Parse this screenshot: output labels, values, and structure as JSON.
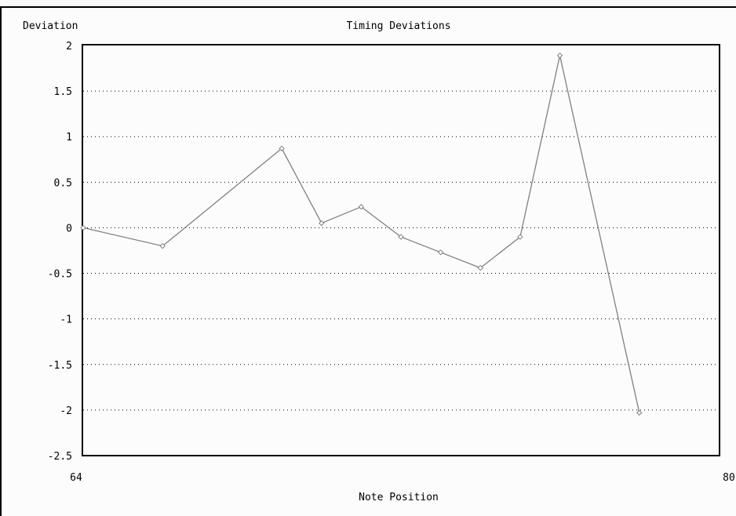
{
  "chart_data": {
    "type": "line",
    "title": "Timing Deviations",
    "xlabel": "Note Position",
    "ylabel": "Deviation",
    "xlim": [
      64,
      80
    ],
    "ylim": [
      -2.5,
      2
    ],
    "x_tick_labels": [
      "64",
      "80"
    ],
    "y_tick_labels": [
      "2",
      "1.5",
      "1",
      "0.5",
      "0",
      "-0.5",
      "-1",
      "-1.5",
      "-2",
      "-2.5"
    ],
    "grid": "dotted horizontal",
    "series": [
      {
        "x": [
          64,
          66,
          69,
          70,
          71,
          72,
          73,
          74,
          75,
          76,
          78
        ],
        "values": [
          0.0,
          -0.2,
          0.87,
          0.05,
          0.23,
          -0.1,
          -0.27,
          -0.44,
          -0.1,
          1.89,
          -2.03
        ]
      }
    ],
    "colors": {
      "line": "#808080",
      "marker": "#808080",
      "frame": "#000000",
      "grid": "#000000"
    }
  }
}
